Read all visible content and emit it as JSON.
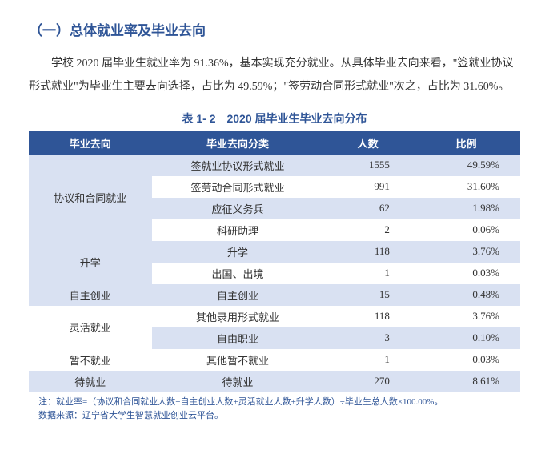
{
  "section_title": "（一）总体就业率及毕业去向",
  "body_text": "学校 2020 届毕业生就业率为 91.36%，基本实现充分就业。从具体毕业去向来看，\"签就业协议形式就业\"为毕业生主要去向选择，占比为 49.59%；\"签劳动合同形式就业\"次之，占比为 31.60%。",
  "table_caption": "表 1- 2　2020 届毕业生毕业去向分布",
  "table": {
    "header_bg": "#2f5597",
    "header_fg": "#ffffff",
    "row_light_bg": "#d9e1f2",
    "row_white_bg": "#ffffff",
    "text_color": "#333333",
    "columns": [
      "毕业去向",
      "毕业去向分类",
      "人数",
      "比例"
    ],
    "rows": [
      {
        "group": "协议和合同就业",
        "rowspan": 4,
        "category": "签就业协议形式就业",
        "count": "1555",
        "pct": "49.59%",
        "band": "light"
      },
      {
        "category": "签劳动合同形式就业",
        "count": "991",
        "pct": "31.60%",
        "band": "white"
      },
      {
        "category": "应征义务兵",
        "count": "62",
        "pct": "1.98%",
        "band": "light"
      },
      {
        "category": "科研助理",
        "count": "2",
        "pct": "0.06%",
        "band": "white"
      },
      {
        "group": "升学",
        "rowspan": 2,
        "category": "升学",
        "count": "118",
        "pct": "3.76%",
        "band": "light"
      },
      {
        "category": "出国、出境",
        "count": "1",
        "pct": "0.03%",
        "band": "white"
      },
      {
        "group": "自主创业",
        "rowspan": 1,
        "category": "自主创业",
        "count": "15",
        "pct": "0.48%",
        "band": "light"
      },
      {
        "group": "灵活就业",
        "rowspan": 2,
        "category": "其他录用形式就业",
        "count": "118",
        "pct": "3.76%",
        "band": "white"
      },
      {
        "category": "自由职业",
        "count": "3",
        "pct": "0.10%",
        "band": "light"
      },
      {
        "group": "暂不就业",
        "rowspan": 1,
        "category": "其他暂不就业",
        "count": "1",
        "pct": "0.03%",
        "band": "white"
      },
      {
        "group": "待就业",
        "rowspan": 1,
        "category": "待就业",
        "count": "270",
        "pct": "8.61%",
        "band": "light"
      }
    ]
  },
  "footnote_line1": "注：就业率=（协议和合同就业人数+自主创业人数+灵活就业人数+升学人数）÷毕业生总人数×100.00%。",
  "footnote_line2": "数据来源：辽宁省大学生智慧就业创业云平台。"
}
